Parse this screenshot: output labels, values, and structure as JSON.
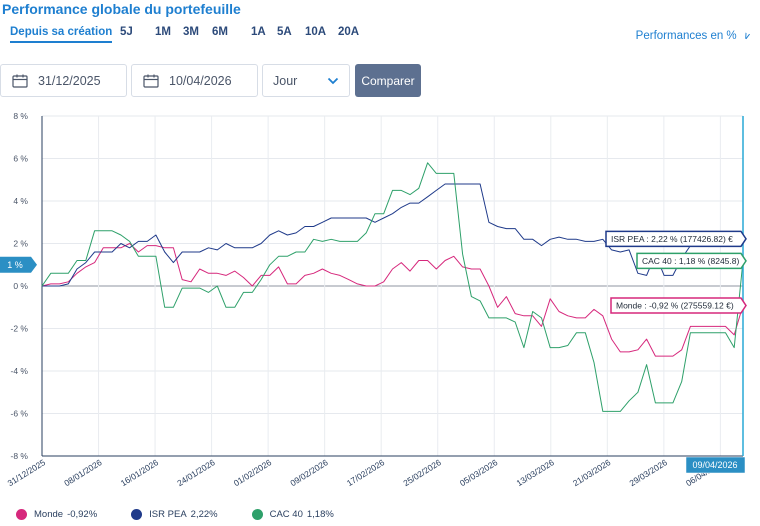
{
  "header": {
    "title": "Performance globale du portefeuille",
    "perf_toggle": "Performances en %"
  },
  "periods": [
    "Depuis sa création",
    "5J",
    "1M",
    "3M",
    "6M",
    "1A",
    "5A",
    "10A",
    "20A"
  ],
  "active_period": "Depuis sa création",
  "filters": {
    "date_start": "31/12/2025",
    "date_end": "10/04/2026",
    "granularity": "Jour",
    "compare_label": "Comparer"
  },
  "colors": {
    "monde": "#d6287c",
    "isr": "#1f3a8a",
    "cac": "#2ea06a",
    "accent": "#1e7fd0",
    "crosshair": "#29a9d6"
  },
  "chart_data": {
    "type": "line",
    "ylim": [
      -8,
      8
    ],
    "yticks": [
      "8 %",
      "6 %",
      "4 %",
      "2 %",
      "0 %",
      "-2 %",
      "-4 %",
      "-6 %",
      "-8 %"
    ],
    "x_start": "31/12/2025",
    "x_end": "09/04/2026",
    "xticks": [
      "31/12/2025",
      "08/01/2026",
      "16/01/2026",
      "24/01/2026",
      "01/02/2026",
      "09/02/2026",
      "17/02/2026",
      "25/02/2026",
      "05/03/2026",
      "13/03/2026",
      "21/03/2026",
      "29/03/2026",
      "06/04/2026"
    ],
    "crosshair_date": "09/04/2026",
    "crosshair_value": "1 %",
    "series": [
      {
        "name": "Monde",
        "key": "monde",
        "tooltip": "Monde : -0,92 % (275559.12 €)",
        "values": [
          0,
          0.1,
          0.1,
          0.2,
          0.6,
          0.9,
          1.1,
          1.8,
          1.8,
          1.8,
          2.0,
          1.6,
          1.9,
          1.9,
          1.8,
          1.8,
          0.3,
          0.2,
          0.8,
          0.6,
          0.6,
          0.5,
          0.7,
          0.4,
          0,
          0.5,
          0.5,
          0.9,
          0.1,
          0.1,
          0.5,
          0.6,
          0.8,
          0.6,
          0.5,
          0.3,
          0.1,
          0,
          0,
          0.2,
          0.8,
          1.1,
          0.7,
          1.2,
          1.2,
          0.8,
          1.2,
          1.4,
          0.9,
          0.8,
          0.8,
          0,
          -1.0,
          -0.5,
          -1.3,
          -1.4,
          -1.4,
          -1.9,
          -0.6,
          -1.2,
          -1.4,
          -1.5,
          -1.5,
          -1.1,
          -1.4,
          -2.5,
          -3.1,
          -3.1,
          -3.0,
          -2.5,
          -3.3,
          -3.3,
          -3.3,
          -3.0,
          -1.9,
          -1.9,
          -1.9,
          -1.9,
          -1.9,
          -2.3,
          -0.9
        ]
      },
      {
        "name": "ISR PEA",
        "key": "isr",
        "tooltip": "ISR PEA : 2,22 % (177426.82) €",
        "values": [
          0,
          0,
          0,
          0.1,
          0.8,
          1.1,
          1.6,
          1.6,
          1.6,
          2.0,
          1.8,
          2.1,
          2.1,
          2.4,
          1.6,
          1.1,
          1.6,
          1.6,
          1.6,
          1.8,
          1.7,
          2.0,
          1.8,
          1.8,
          1.8,
          2.0,
          2.4,
          2.6,
          2.4,
          2.5,
          2.8,
          2.8,
          3.0,
          3.2,
          3.2,
          3.2,
          3.2,
          3.2,
          3.0,
          3.2,
          3.4,
          3.7,
          3.9,
          3.9,
          4.2,
          4.5,
          4.8,
          4.8,
          4.8,
          4.8,
          4.8,
          3.0,
          2.8,
          2.7,
          2.7,
          2.2,
          2.2,
          1.9,
          2.2,
          2.3,
          2.2,
          2.2,
          2.1,
          2.1,
          2.2,
          1.7,
          1.6,
          1.7,
          0.6,
          0.5,
          1.5,
          0.5,
          0.5,
          1.3,
          1.9,
          1.9,
          1.9,
          1.9,
          1.9,
          2.1,
          2.22
        ]
      },
      {
        "name": "CAC 40",
        "key": "cac",
        "tooltip": "CAC 40 : 1,18 % (8245.8)",
        "values": [
          0,
          0.6,
          0.6,
          0.6,
          1.2,
          1.2,
          2.6,
          2.6,
          2.6,
          2.4,
          2.1,
          1.4,
          1.4,
          1.4,
          -1.0,
          -1.0,
          -0.1,
          -0.1,
          -0.1,
          -0.3,
          0,
          -1.0,
          -1.0,
          -0.3,
          -0.3,
          0.3,
          1.0,
          1.4,
          1.4,
          1.6,
          1.6,
          2.2,
          2.1,
          2.2,
          2.1,
          2.1,
          2.1,
          2.5,
          3.4,
          3.4,
          4.5,
          4.5,
          4.3,
          4.6,
          5.8,
          5.3,
          5.3,
          5.3,
          1.5,
          -0.5,
          -0.7,
          -1.5,
          -1.5,
          -1.5,
          -1.7,
          -2.9,
          -1.2,
          -1.5,
          -2.9,
          -2.9,
          -2.8,
          -2.2,
          -2.2,
          -3.6,
          -5.9,
          -5.9,
          -5.9,
          -5.4,
          -5.0,
          -3.7,
          -5.5,
          -5.5,
          -5.5,
          -4.5,
          -2.2,
          -2.2,
          -2.2,
          -2.2,
          -2.2,
          -2.9,
          1.18
        ]
      }
    ],
    "legend": [
      {
        "name": "Monde",
        "value": "-0,92%",
        "key": "monde"
      },
      {
        "name": "ISR PEA",
        "value": "2,22%",
        "key": "isr"
      },
      {
        "name": "CAC 40",
        "value": "1,18%",
        "key": "cac"
      }
    ]
  }
}
